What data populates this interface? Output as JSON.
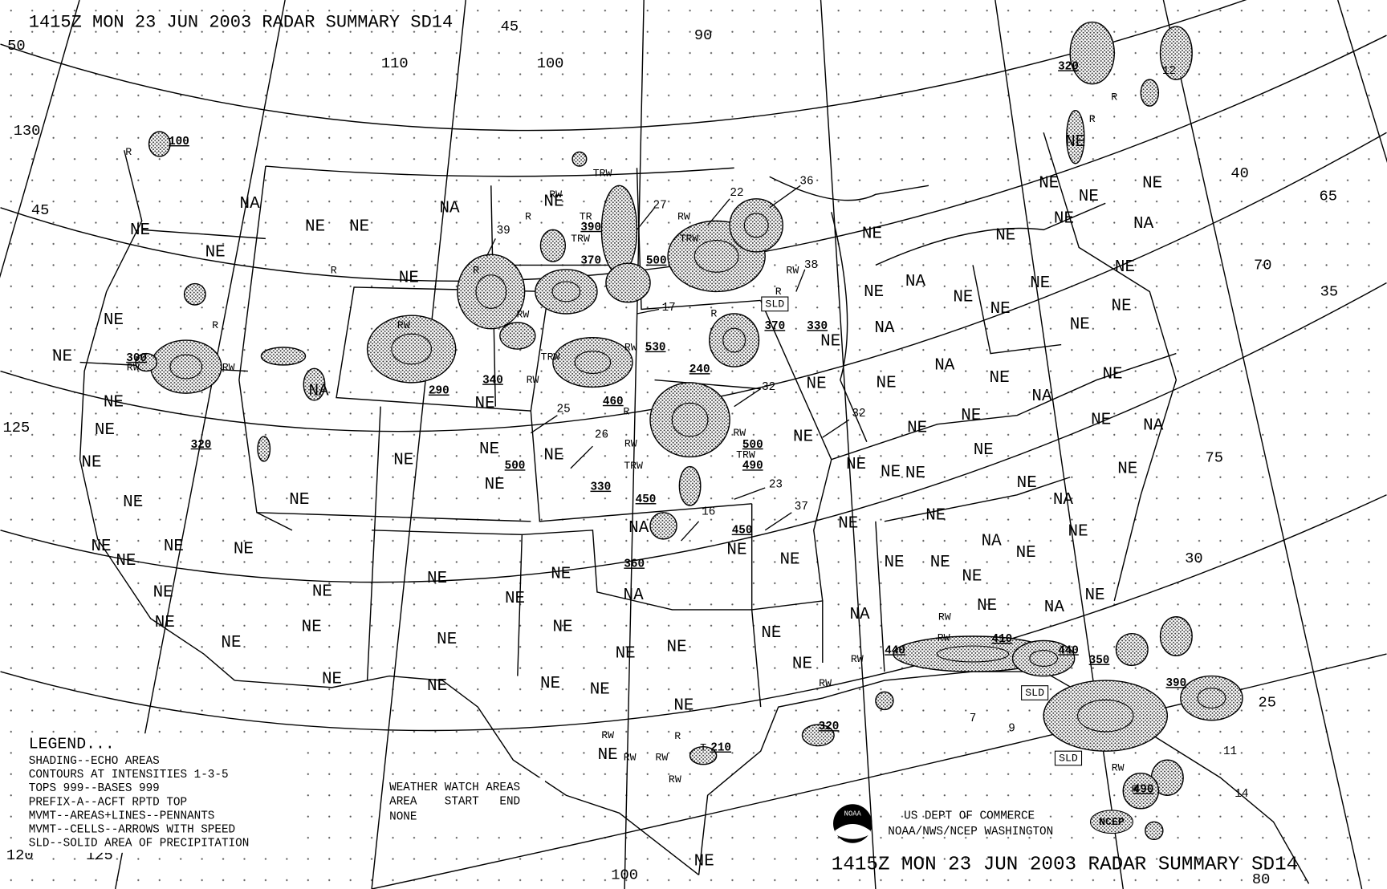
{
  "header": {
    "title": "1415Z MON 23 JUN 2003 RADAR SUMMARY SD14"
  },
  "footer": {
    "title": "1415Z MON 23 JUN 2003 RADAR SUMMARY SD14"
  },
  "legend": {
    "heading": "LEGEND...",
    "lines": [
      "SHADING--ECHO AREAS",
      "CONTOURS AT INTENSITIES 1-3-5",
      "TOPS 999--BASES 999",
      "PREFIX-A--ACFT RPTD TOP",
      "MVMT--AREAS+LINES--PENNANTS",
      "MVMT--CELLS--ARROWS WITH SPEED",
      "SLD--SOLID AREA OF PRECIPITATION"
    ]
  },
  "watch": {
    "heading": "WEATHER WATCH AREAS",
    "columns": "AREA    START   END",
    "entry": "NONE"
  },
  "agency": {
    "lines": [
      "US DEPT OF COMMERCE",
      "NOAA/NWS/NCEP WASHINGTON"
    ],
    "noaa_logo": "NOAA",
    "ncep_logo": "NCEP"
  },
  "map": {
    "labels": [
      "NA",
      "NE",
      "NE",
      "NA",
      "NE",
      "NE",
      "NE",
      "NE",
      "NE",
      "NA",
      "NE",
      "NE",
      "NE",
      "NE",
      "NE",
      "NE",
      "NE",
      "NE",
      "NE",
      "NE",
      "NE",
      "NE",
      "NE",
      "NE",
      "NE",
      "NE",
      "NE",
      "NE",
      "NE",
      "NE",
      "NE",
      "NE",
      "NE",
      "NE",
      "NE",
      "NA",
      "NE",
      "NE",
      "NE",
      "NE",
      "NE",
      "NE",
      "NE",
      "NE",
      "NA",
      "NE",
      "NE",
      "NE",
      "NE",
      "NA",
      "NE",
      "NE",
      "NE",
      "NE",
      "NE",
      "NE",
      "NE",
      "NE",
      "NE",
      "NE",
      "NA",
      "NE",
      "NA",
      "NE",
      "NE",
      "NE",
      "NA",
      "NE",
      "NE",
      "NE",
      "NA",
      "NE",
      "NA",
      "NE",
      "NE",
      "NE",
      "NA",
      "NE",
      "NE",
      "NA",
      "NE",
      "NE",
      "NA",
      "NE",
      "NE",
      "NE",
      "NE",
      "NE",
      "NE",
      "NA",
      "NE",
      "NE",
      "NE",
      "NE",
      "NE",
      "NE",
      "NE",
      "NE"
    ],
    "tops": [
      "100",
      "300",
      "320",
      "290",
      "340",
      "530",
      "240",
      "460",
      "500",
      "490",
      "500",
      "330",
      "450",
      "450",
      "360",
      "390",
      "370",
      "500",
      "370",
      "330",
      "320",
      "440",
      "410",
      "440",
      "350",
      "390",
      "320",
      "210",
      "490"
    ],
    "speeds": [
      "39",
      "27",
      "22",
      "36",
      "38",
      "17",
      "32",
      "32",
      "25",
      "26",
      "23",
      "37",
      "16",
      "7",
      "9",
      "11",
      "14",
      "12"
    ],
    "precip": [
      "RW",
      "R",
      "R",
      "RW",
      "RW",
      "R",
      "RW",
      "R",
      "R",
      "RW",
      "TRW",
      "TR",
      "TRW",
      "RW",
      "TRW",
      "RW",
      "R",
      "TRW",
      "RW",
      "RW",
      "RW",
      "TRW",
      "RW",
      "TRW",
      "R",
      "R",
      "RW",
      "RW",
      "RW",
      "RW",
      "RW",
      "R",
      "RW",
      "RW",
      "RW",
      "T",
      "RW",
      "R",
      "R",
      "R"
    ],
    "sld": [
      "SLD",
      "SLD",
      "SLD"
    ],
    "grid_labels": [
      "50",
      "130",
      "45",
      "125",
      "120",
      "125",
      "110",
      "100",
      "90",
      "100",
      "40",
      "65",
      "70",
      "35",
      "75",
      "30",
      "25",
      "80",
      "45"
    ]
  }
}
